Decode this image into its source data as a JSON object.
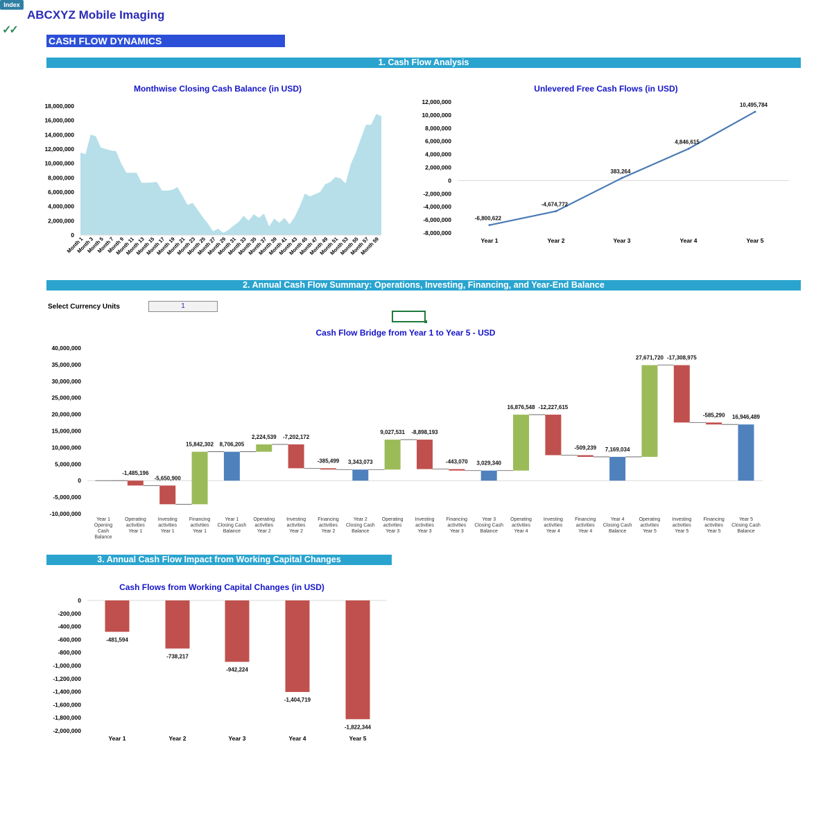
{
  "header": {
    "index_label": "Index",
    "company": "ABCXYZ Mobile Imaging",
    "check_glyph": "✓✓",
    "page_banner": "CASH FLOW DYNAMICS"
  },
  "sections": {
    "s1": "1. Cash Flow Analysis",
    "s2": "2. Annual Cash Flow Summary: Operations, Investing, Financing, and Year-End Balance",
    "s3": "3. Annual Cash Flow Impact from Working Capital Changes"
  },
  "currency": {
    "label": "Select Currency Units",
    "value": "1"
  },
  "colors": {
    "section_bar": "#2aa4cf",
    "banner": "#2c4fd8",
    "area": "#b6dfe9",
    "line": "#4a7ab5",
    "up": "#9bbb59",
    "down": "#c0504d",
    "total": "#4f81bd"
  },
  "chart_data": [
    {
      "id": "closing_cash",
      "type": "area",
      "title": "Monthwise Closing Cash Balance (in USD)",
      "ylim": [
        0,
        18000000
      ],
      "yticks": [
        0,
        2000000,
        4000000,
        6000000,
        8000000,
        10000000,
        12000000,
        14000000,
        16000000,
        18000000
      ],
      "ytick_labels": [
        "0",
        "2,000,000",
        "4,000,000",
        "6,000,000",
        "8,000,000",
        "10,000,000",
        "12,000,000",
        "14,000,000",
        "16,000,000",
        "18,000,000"
      ],
      "xtick_labels": [
        "Month 1",
        "Month 3",
        "Month 5",
        "Month 7",
        "Month 9",
        "Month 11",
        "Month 13",
        "Month 15",
        "Month 17",
        "Month 19",
        "Month 21",
        "Month 23",
        "Month 25",
        "Month 27",
        "Month 29",
        "Month 31",
        "Month 33",
        "Month 35",
        "Month 37",
        "Month 39",
        "Month 41",
        "Month 43",
        "Month 45",
        "Month 47",
        "Month 49",
        "Month 51",
        "Month 53",
        "Month 55",
        "Month 57",
        "Month 59"
      ],
      "values": [
        11500000,
        11300000,
        14000000,
        13800000,
        12200000,
        12000000,
        11800000,
        11700000,
        10000000,
        8700000,
        8700000,
        8700000,
        7300000,
        7300000,
        7350000,
        7400000,
        6200000,
        6200000,
        6300000,
        6700000,
        5500000,
        4200000,
        4500000,
        3500000,
        2500000,
        1600000,
        500000,
        900000,
        300000,
        700000,
        1300000,
        1800000,
        2700000,
        2000000,
        2900000,
        2400000,
        3000000,
        1200000,
        2300000,
        1700000,
        2400000,
        1500000,
        2500000,
        4000000,
        5800000,
        5400000,
        5700000,
        6000000,
        7100000,
        7400000,
        8100000,
        7900000,
        7200000,
        9900000,
        11500000,
        13500000,
        15400000,
        15400000,
        16900000,
        16600000
      ]
    },
    {
      "id": "ufcf",
      "type": "line",
      "title": "Unlevered Free Cash Flows (in USD)",
      "categories": [
        "Year 1",
        "Year 2",
        "Year 3",
        "Year 4",
        "Year 5"
      ],
      "values": [
        -6800622,
        -4674772,
        383264,
        4846615,
        10495784
      ],
      "labels": [
        "-6,800,622",
        "-4,674,772",
        "383,264",
        "4,846,615",
        "10,495,784"
      ],
      "ylim": [
        -8000000,
        12000000
      ],
      "yticks": [
        -8000000,
        -6000000,
        -4000000,
        -2000000,
        0,
        2000000,
        4000000,
        6000000,
        8000000,
        10000000,
        12000000
      ],
      "ytick_labels": [
        "-8,000,000",
        "-6,000,000",
        "-4,000,000",
        "-2,000,000",
        "0",
        "2,000,000",
        "4,000,000",
        "6,000,000",
        "8,000,000",
        "10,000,000",
        "12,000,000"
      ]
    },
    {
      "id": "bridge",
      "type": "bar",
      "subtype": "waterfall",
      "title": "Cash Flow Bridge from Year 1 to Year 5 - USD",
      "ylim": [
        -10000000,
        40000000
      ],
      "yticks": [
        -10000000,
        -5000000,
        0,
        5000000,
        10000000,
        15000000,
        20000000,
        25000000,
        30000000,
        35000000,
        40000000
      ],
      "ytick_labels": [
        "-10,000,000",
        "-5,000,000",
        "0",
        "5,000,000",
        "10,000,000",
        "15,000,000",
        "20,000,000",
        "25,000,000",
        "30,000,000",
        "35,000,000",
        "40,000,000"
      ],
      "steps": [
        {
          "category": [
            "Year 1",
            "Opening",
            "Cash",
            "Balance"
          ],
          "kind": "total",
          "value": 0,
          "label": ""
        },
        {
          "category": [
            "Operating",
            "activities",
            "Year 1"
          ],
          "kind": "delta",
          "value": -1485196,
          "label": "-1,485,196"
        },
        {
          "category": [
            "Investing",
            "activities",
            "Year 1"
          ],
          "kind": "delta",
          "value": -5650900,
          "label": "-5,650,900"
        },
        {
          "category": [
            "Financing",
            "activities",
            "Year 1"
          ],
          "kind": "delta",
          "value": 15842302,
          "label": "15,842,302"
        },
        {
          "category": [
            "Year 1",
            "Closing Cash",
            "Balance"
          ],
          "kind": "total",
          "value": 8706205,
          "label": "8,706,205"
        },
        {
          "category": [
            "Operating",
            "activities",
            "Year 2"
          ],
          "kind": "delta",
          "value": 2224539,
          "label": "2,224,539"
        },
        {
          "category": [
            "Investing",
            "activities",
            "Year 2"
          ],
          "kind": "delta",
          "value": -7202172,
          "label": "-7,202,172"
        },
        {
          "category": [
            "Financing",
            "activities",
            "Year 2"
          ],
          "kind": "delta",
          "value": -385499,
          "label": "-385,499"
        },
        {
          "category": [
            "Year 2",
            "Closing Cash",
            "Balance"
          ],
          "kind": "total",
          "value": 3343073,
          "label": "3,343,073"
        },
        {
          "category": [
            "Operating",
            "activities",
            "Year 3"
          ],
          "kind": "delta",
          "value": 9027531,
          "label": "9,027,531"
        },
        {
          "category": [
            "Investing",
            "activities",
            "Year 3"
          ],
          "kind": "delta",
          "value": -8898193,
          "label": "-8,898,193"
        },
        {
          "category": [
            "Financing",
            "activities",
            "Year 3"
          ],
          "kind": "delta",
          "value": -443070,
          "label": "-443,070"
        },
        {
          "category": [
            "Year 3",
            "Closing Cash",
            "Balance"
          ],
          "kind": "total",
          "value": 3029340,
          "label": "3,029,340"
        },
        {
          "category": [
            "Operating",
            "activities",
            "Year 4"
          ],
          "kind": "delta",
          "value": 16876548,
          "label": "16,876,548"
        },
        {
          "category": [
            "Investing",
            "activities",
            "Year 4"
          ],
          "kind": "delta",
          "value": -12227615,
          "label": "-12,227,615"
        },
        {
          "category": [
            "Financing",
            "activities",
            "Year 4"
          ],
          "kind": "delta",
          "value": -509239,
          "label": "-509,239"
        },
        {
          "category": [
            "Year 4",
            "Closing Cash",
            "Balance"
          ],
          "kind": "total",
          "value": 7169034,
          "label": "7,169,034"
        },
        {
          "category": [
            "Operating",
            "activities",
            "Year 5"
          ],
          "kind": "delta",
          "value": 27671720,
          "label": "27,671,720"
        },
        {
          "category": [
            "Investing",
            "activities",
            "Year 5"
          ],
          "kind": "delta",
          "value": -17308975,
          "label": "-17,308,975"
        },
        {
          "category": [
            "Financing",
            "activities",
            "Year 5"
          ],
          "kind": "delta",
          "value": -585290,
          "label": "-585,290"
        },
        {
          "category": [
            "Year 5",
            "Closing Cash",
            "Balance"
          ],
          "kind": "total",
          "value": 16946489,
          "label": "16,946,489"
        }
      ]
    },
    {
      "id": "working_capital",
      "type": "bar",
      "title": "Cash Flows from Working Capital Changes (in USD)",
      "categories": [
        "Year 1",
        "Year 2",
        "Year 3",
        "Year 4",
        "Year 5"
      ],
      "values": [
        -481594,
        -738217,
        -942224,
        -1404719,
        -1822344
      ],
      "labels": [
        "-481,594",
        "-738,217",
        "-942,224",
        "-1,404,719",
        "-1,822,344"
      ],
      "ylim": [
        -2000000,
        0
      ],
      "yticks": [
        -2000000,
        -1800000,
        -1600000,
        -1400000,
        -1200000,
        -1000000,
        -800000,
        -600000,
        -400000,
        -200000,
        0
      ],
      "ytick_labels": [
        "-2,000,000",
        "-1,800,000",
        "-1,600,000",
        "-1,400,000",
        "-1,200,000",
        "-1,000,000",
        "-800,000",
        "-600,000",
        "-400,000",
        "-200,000",
        "0"
      ]
    }
  ]
}
